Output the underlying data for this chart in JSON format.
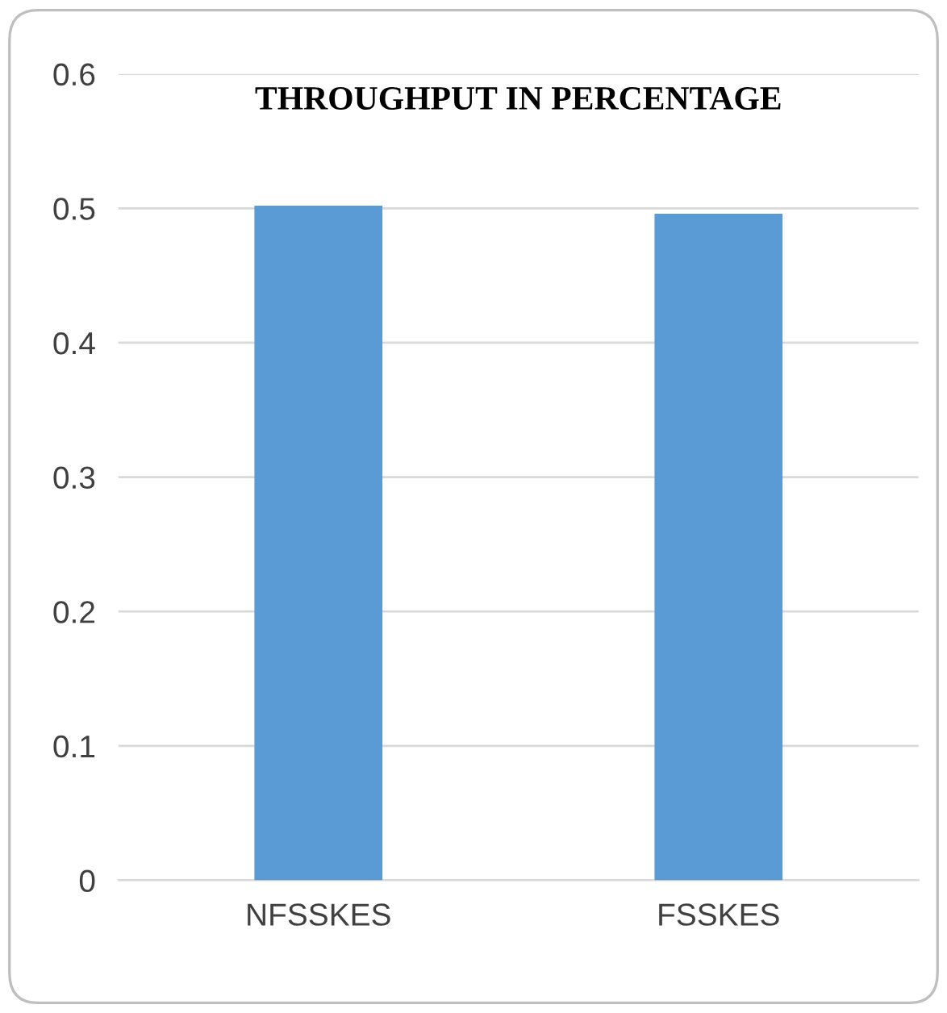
{
  "chart_data": {
    "type": "bar",
    "title": "THROUGHPUT IN PERCENTAGE",
    "categories": [
      "NFSSKES",
      "FSSKES"
    ],
    "values": [
      0.502,
      0.496
    ],
    "color": "#5b9bd5",
    "ylim": [
      0,
      0.6
    ],
    "yticks": [
      0,
      0.1,
      0.2,
      0.3,
      0.4,
      0.5,
      0.6
    ],
    "grid": "y"
  }
}
